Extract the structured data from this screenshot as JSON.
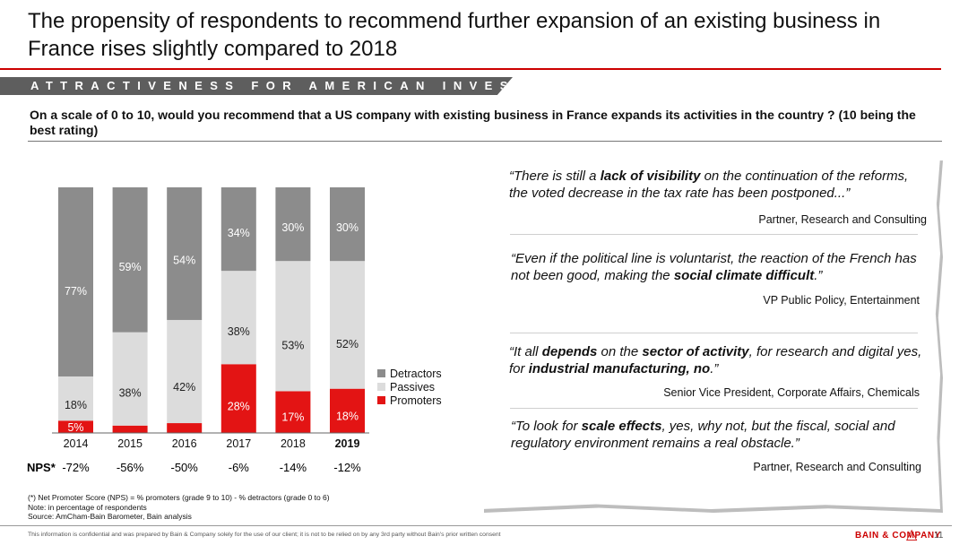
{
  "header": {
    "title": "The propensity of respondents to recommend further expansion of an existing business in France rises slightly compared to 2018",
    "banner": "ATTRACTIVENESS FOR AMERICAN INVESTORS",
    "question": "On a scale of 0 to 10, would you recommend that a US company with existing business in France expands its activities in the country ? (10 being the best rating)"
  },
  "colors": {
    "detractors": "#8c8c8c",
    "passives": "#dcdcdc",
    "promoters": "#e31414",
    "accent": "#cc0000"
  },
  "chart_data": {
    "type": "bar",
    "stacked": true,
    "percent_stacked": true,
    "categories": [
      "2014",
      "2015",
      "2016",
      "2017",
      "2018",
      "2019"
    ],
    "highlight_category": "2019",
    "series": [
      {
        "name": "Promoters",
        "values": [
          5,
          3,
          4,
          28,
          17,
          18
        ],
        "labels": [
          "5%",
          "",
          "",
          "28%",
          "17%",
          "18%"
        ]
      },
      {
        "name": "Passives",
        "values": [
          18,
          38,
          42,
          38,
          53,
          52
        ],
        "labels": [
          "18%",
          "38%",
          "42%",
          "38%",
          "53%",
          "52%"
        ]
      },
      {
        "name": "Detractors",
        "values": [
          77,
          59,
          54,
          34,
          30,
          30
        ],
        "labels": [
          "77%",
          "59%",
          "54%",
          "34%",
          "30%",
          "30%"
        ]
      }
    ],
    "legend": [
      "Detractors",
      "Passives",
      "Promoters"
    ],
    "legend_position": "right",
    "ylim": [
      0,
      100
    ],
    "nps_label": "NPS*",
    "nps": [
      "-72%",
      "-56%",
      "-50%",
      "-6%",
      "-14%",
      "-12%"
    ]
  },
  "footnotes": [
    "(*) Net Promoter Score (NPS) = % promoters (grade 9 to 10) - % detractors (grade 0 to 6)",
    "Note: in percentage of respondents",
    "Source: AmCham-Bain Barometer, Bain analysis"
  ],
  "quotes": [
    {
      "parts": [
        {
          "t": "“There is still a "
        },
        {
          "t": "lack of visibility",
          "b": true
        },
        {
          "t": " on the continuation of the reforms, the voted decrease in the tax rate has been postponed...”"
        }
      ],
      "attribution": "Partner, Research and Consulting"
    },
    {
      "parts": [
        {
          "t": "“Even if the political line is voluntarist, the reaction of the French has not been good, making the "
        },
        {
          "t": "social climate difficult",
          "b": true
        },
        {
          "t": ".”"
        }
      ],
      "attribution": "VP Public Policy, Entertainment"
    },
    {
      "parts": [
        {
          "t": "“It all "
        },
        {
          "t": "depends",
          "b": true
        },
        {
          "t": " on the "
        },
        {
          "t": "sector of activity",
          "b": true
        },
        {
          "t": ", for research and digital yes, for "
        },
        {
          "t": "industrial manufacturing, no",
          "b": true
        },
        {
          "t": ".”"
        }
      ],
      "attribution": "Senior Vice President, Corporate Affairs, Chemicals"
    },
    {
      "parts": [
        {
          "t": "“To look for "
        },
        {
          "t": "scale effects",
          "b": true
        },
        {
          "t": ", yes, why not, but the fiscal, social and regulatory environment remains a real obstacle.”"
        }
      ],
      "attribution": "Partner, Research and Consulting"
    }
  ],
  "footer": {
    "confidential": "This information is confidential and was prepared by Bain & Company solely for the use of our client; it is not to be relied on by any 3rd party without Bain's prior written consent",
    "logo": "BAIN & COMPANY",
    "page": "11"
  }
}
